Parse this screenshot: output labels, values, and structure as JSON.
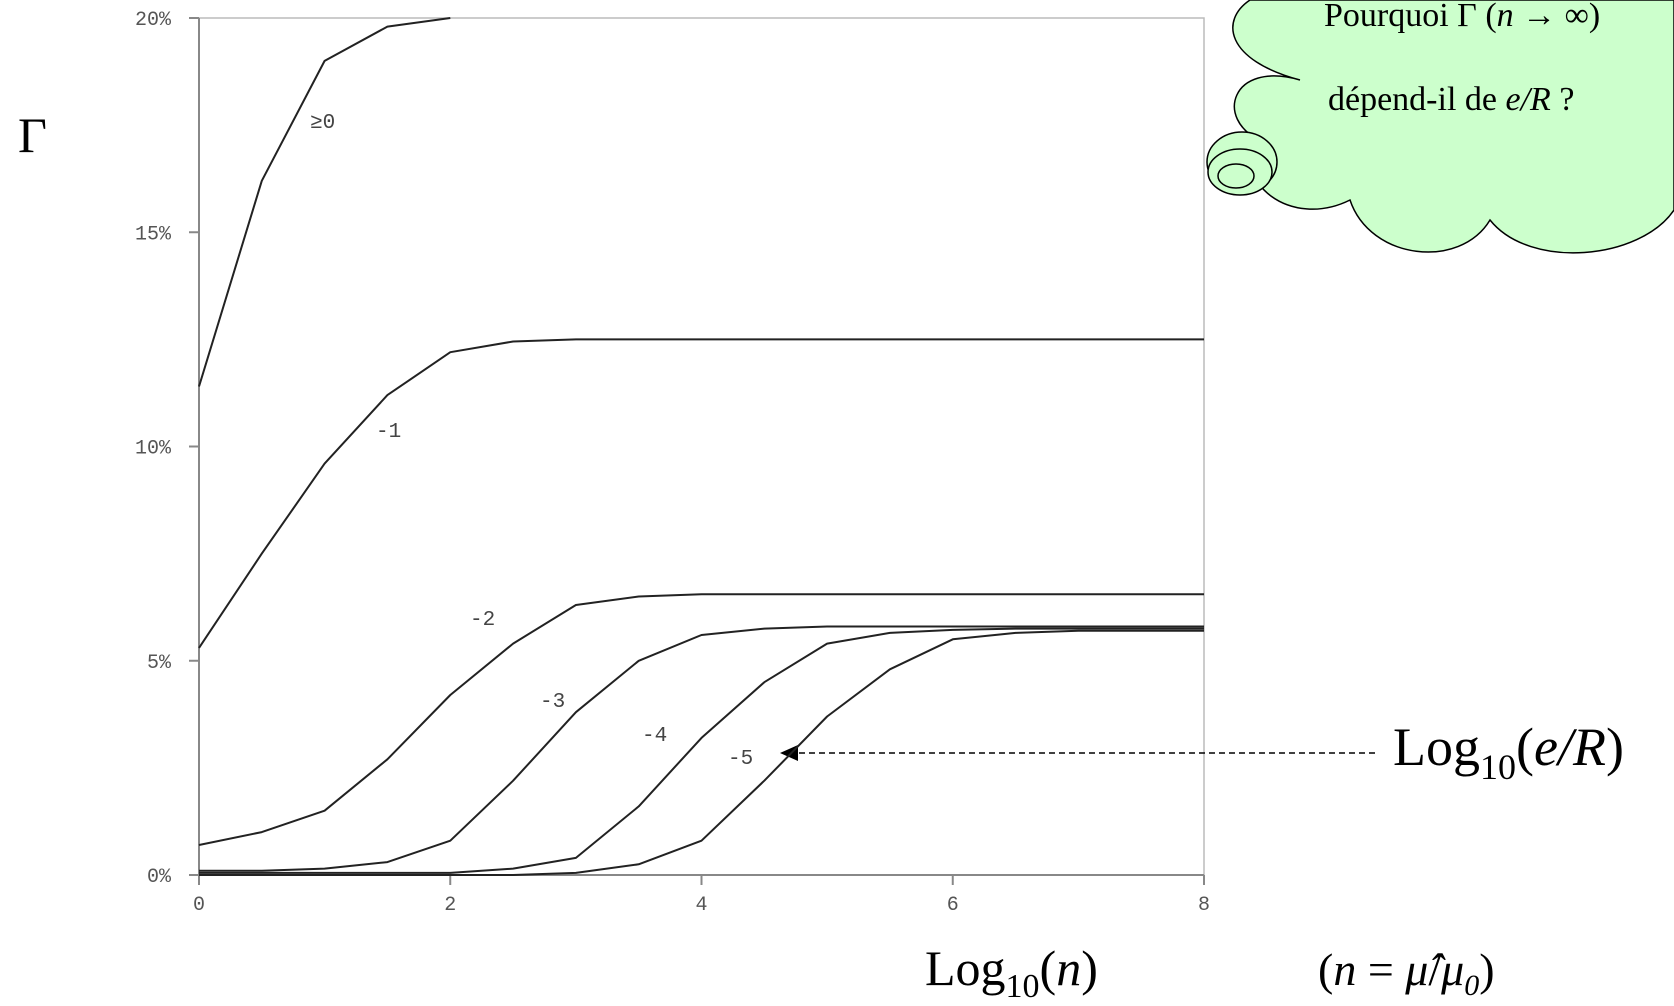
{
  "chart_data": {
    "type": "line",
    "x": [
      0,
      0.5,
      1,
      1.5,
      2,
      2.5,
      3,
      3.5,
      4,
      4.5,
      5,
      5.5,
      6,
      6.5,
      7,
      7.5,
      8
    ],
    "series": [
      {
        "name": "≥0",
        "color": "#222222",
        "values": [
          11.4,
          16.2,
          19.0,
          19.8,
          20,
          null,
          null,
          null,
          null,
          null,
          null,
          null,
          null,
          null,
          null,
          null,
          null
        ]
      },
      {
        "name": "-1",
        "color": "#222222",
        "values": [
          5.3,
          7.5,
          9.6,
          11.2,
          12.2,
          12.45,
          12.5,
          12.5,
          12.5,
          12.5,
          12.5,
          12.5,
          12.5,
          12.5,
          12.5,
          12.5,
          12.5
        ]
      },
      {
        "name": "-2",
        "color": "#222222",
        "values": [
          0.7,
          1.0,
          1.5,
          2.7,
          4.2,
          5.4,
          6.3,
          6.5,
          6.55,
          6.55,
          6.55,
          6.55,
          6.55,
          6.55,
          6.55,
          6.55,
          6.55
        ]
      },
      {
        "name": "-3",
        "color": "#222222",
        "values": [
          0.1,
          0.1,
          0.15,
          0.3,
          0.8,
          2.2,
          3.8,
          5.0,
          5.6,
          5.75,
          5.8,
          5.8,
          5.8,
          5.8,
          5.8,
          5.8,
          5.8
        ]
      },
      {
        "name": "-4",
        "color": "#222222",
        "values": [
          0.05,
          0.05,
          0.05,
          0.05,
          0.05,
          0.15,
          0.4,
          1.6,
          3.2,
          4.5,
          5.4,
          5.65,
          5.72,
          5.75,
          5.75,
          5.75,
          5.75
        ]
      },
      {
        "name": "-5",
        "color": "#222222",
        "values": [
          0,
          0,
          0,
          0,
          0,
          0,
          0.05,
          0.25,
          0.8,
          2.2,
          3.7,
          4.8,
          5.5,
          5.65,
          5.7,
          5.7,
          5.7
        ]
      }
    ],
    "xlim": [
      0,
      8
    ],
    "xticks": [
      0,
      2,
      4,
      6,
      8
    ],
    "ylim": [
      0,
      20
    ],
    "yticks": [
      {
        "value": 0,
        "label": "0%"
      },
      {
        "value": 5,
        "label": "5%"
      },
      {
        "value": 10,
        "label": "10%"
      },
      {
        "value": 15,
        "label": "15%"
      },
      {
        "value": 20,
        "label": "20%"
      }
    ],
    "y_label": "Γ",
    "x_label": [
      "Log",
      "10",
      "(",
      "n",
      ")"
    ],
    "x_note": [
      "(",
      "n",
      " = ",
      "μ̂",
      "/",
      "μ",
      "0",
      ")"
    ],
    "annotation": [
      "Log",
      "10",
      "(",
      "e/R",
      ")"
    ],
    "cloud": {
      "line1": [
        "Pourquoi Γ (",
        "n",
        " → ∞)"
      ],
      "line2": [
        "dépend-il de ",
        "e/R",
        " ?"
      ]
    }
  }
}
